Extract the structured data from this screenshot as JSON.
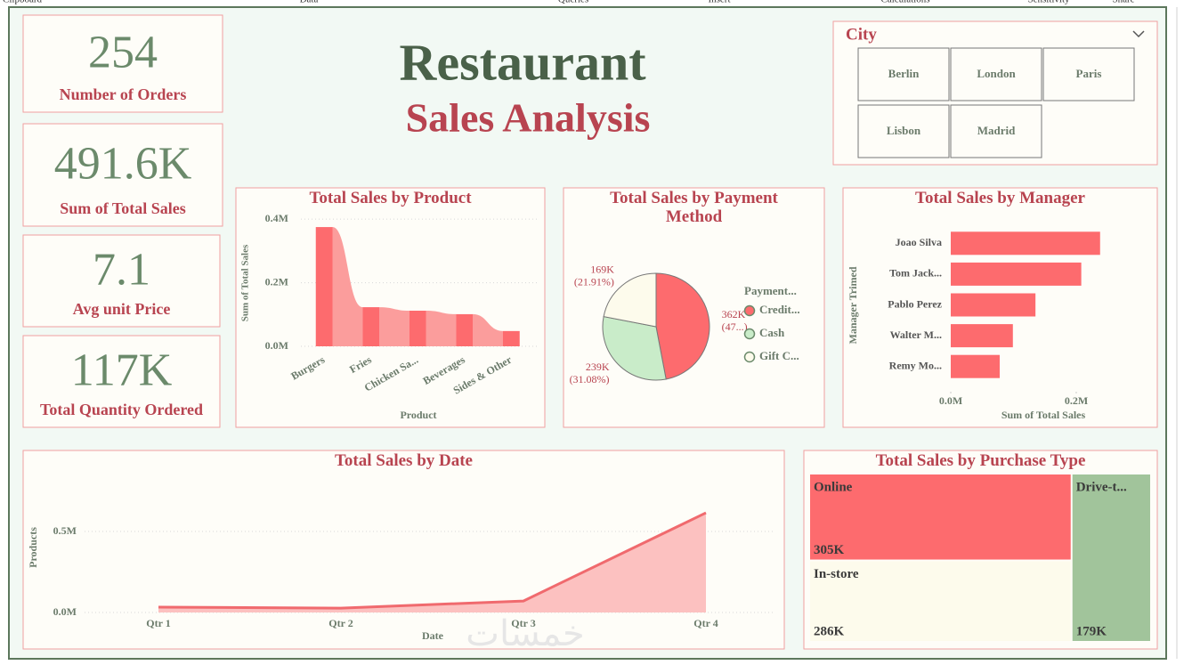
{
  "toolbar": [
    "Clipboard",
    "Data",
    "Queries",
    "Insert",
    "Calculations",
    "Sensitivity",
    "Share"
  ],
  "header": {
    "title": "Restaurant",
    "subtitle": "Sales Analysis"
  },
  "kpis": [
    {
      "value": "254",
      "label": "Number of Orders"
    },
    {
      "value": "491.6K",
      "label": "Sum of Total Sales"
    },
    {
      "value": "7.1",
      "label": "Avg unit Price"
    },
    {
      "value": "117K",
      "label": "Total Quantity Ordered"
    }
  ],
  "slicer": {
    "title": "City",
    "options": [
      "Berlin",
      "London",
      "Paris",
      "Lisbon",
      "Madrid"
    ]
  },
  "watermark": "خمسات",
  "chart_data": [
    {
      "type": "ribbon",
      "title": "Total Sales by Product",
      "x_label": "Product",
      "y_label": "Sum of Total Sales",
      "categories": [
        "Burgers",
        "Fries",
        "Chicken Sa...",
        "Beverages",
        "Sides & Other"
      ],
      "values": [
        0.375,
        0.123,
        0.112,
        0.101,
        0.048
      ],
      "color": "#fd6b6e",
      "ribbon_color": "#fb9d9c",
      "ylim": [
        0,
        0.42
      ],
      "yticks": [
        {
          "value": 0,
          "label": "0.0M"
        },
        {
          "value": 0.2,
          "label": "0.2M"
        },
        {
          "value": 0.4,
          "label": "0.4M"
        }
      ],
      "grid": true
    },
    {
      "type": "pie",
      "title": "Total Sales by Payment Method",
      "legend_title": "Payment...",
      "categories": [
        "Credit...",
        "Cash",
        "Gift C..."
      ],
      "values": [
        362,
        239,
        169
      ],
      "value_labels": [
        "362K",
        "239K",
        "169K"
      ],
      "percent_labels": [
        "(47...)",
        "(31.08%)",
        "(21.91%)"
      ],
      "colors": [
        "#fd6b6e",
        "#c9ecc9",
        "#fdfbec"
      ]
    },
    {
      "type": "hbar",
      "title": "Total Sales by Manager",
      "x_label": "Sum of Total Sales",
      "y_label": "Manager Trimed",
      "categories": [
        "Joao Silva",
        "Tom Jack...",
        "Pablo Perez",
        "Walter M...",
        "Remy Mo..."
      ],
      "values": [
        0.238,
        0.208,
        0.135,
        0.099,
        0.078
      ],
      "color": "#fd6b6e",
      "xlim": [
        0,
        0.245
      ],
      "xticks": [
        {
          "value": 0,
          "label": "0.0M"
        },
        {
          "value": 0.2,
          "label": "0.2M"
        }
      ]
    },
    {
      "type": "area",
      "title": "Total Sales by Date",
      "x_label": "Date",
      "y_label": "Products",
      "categories": [
        "Qtr 1",
        "Qtr 2",
        "Qtr 3",
        "Qtr 4"
      ],
      "values": [
        0.033,
        0.027,
        0.071,
        0.615
      ],
      "color": "#f06a6e",
      "fill": "#fcc1c0",
      "ylim": [
        0,
        0.7
      ],
      "yticks": [
        {
          "value": 0,
          "label": "0.0M"
        },
        {
          "value": 0.5,
          "label": "0.5M"
        }
      ],
      "grid": true
    },
    {
      "type": "treemap",
      "title": "Total Sales by Purchase Type",
      "categories": [
        "Online",
        "In-store",
        "Drive-t..."
      ],
      "values": [
        305,
        286,
        179
      ],
      "value_labels": [
        "305K",
        "286K",
        "179K"
      ],
      "colors": [
        "#fd6b6e",
        "#fdfbec",
        "#a1c49b"
      ]
    }
  ]
}
